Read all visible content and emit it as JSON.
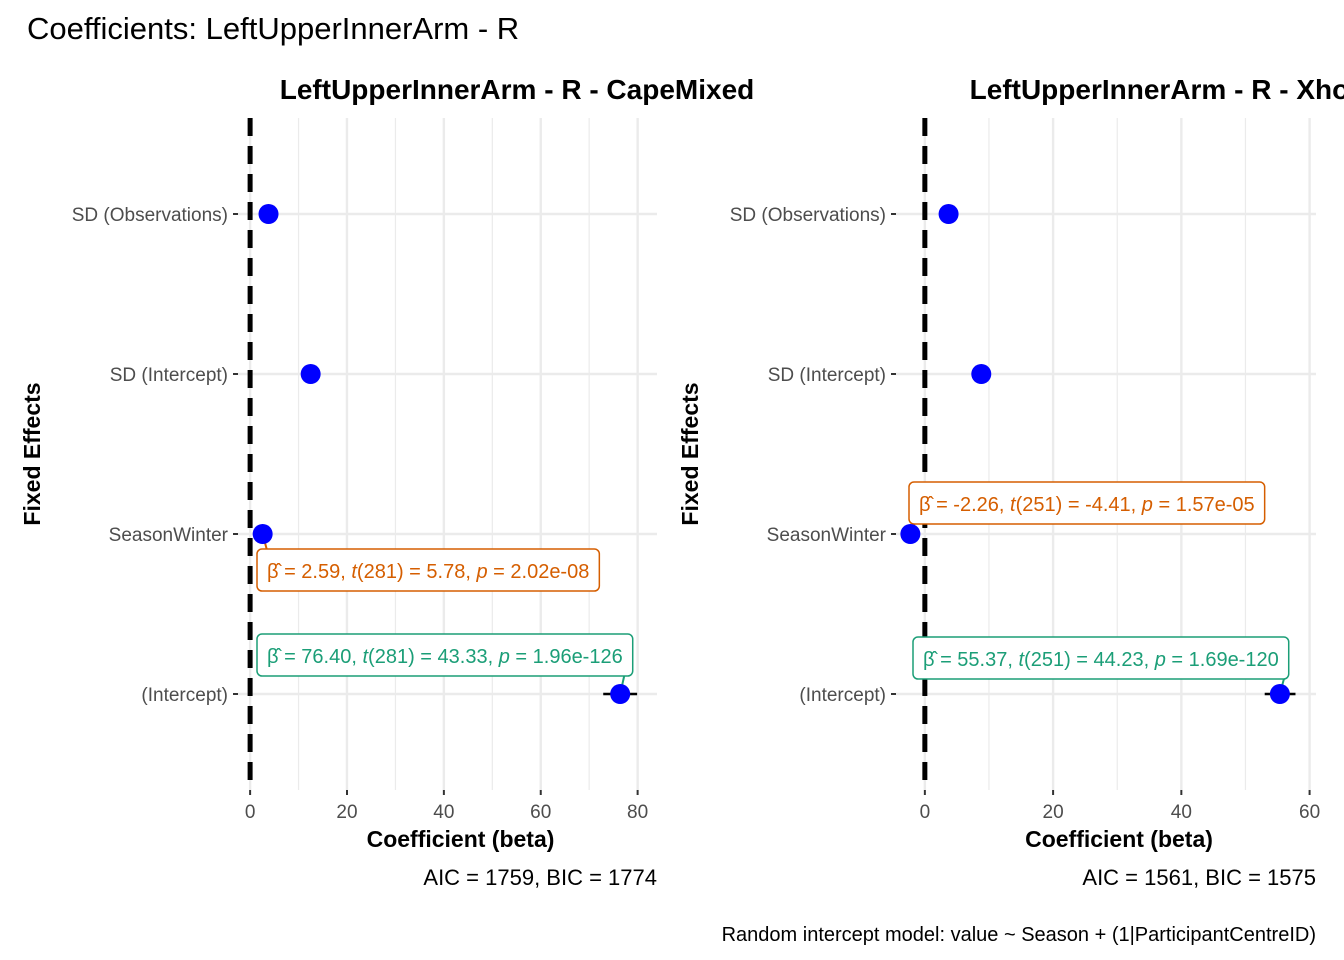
{
  "title": "Coefficients: LeftUpperInnerArm - R",
  "caption": "Random intercept model: value ~ Season + (1|ParticipantCentreID)",
  "colors": {
    "point": "#0000ff",
    "season_label": "#d55e00",
    "intercept_label": "#1b9e77",
    "grid": "#ebebeb",
    "zero_line": "#000000"
  },
  "chart_data": [
    {
      "type": "scatter",
      "title": "LeftUpperInnerArm - R - CapeMixed",
      "xlabel": "Coefficient (beta)",
      "ylabel": "Fixed Effects",
      "categories": [
        "SD (Observations)",
        "SD (Intercept)",
        "SeasonWinter",
        "(Intercept)"
      ],
      "values": [
        3.8,
        12.5,
        2.59,
        76.4
      ],
      "ci_low": [
        null,
        null,
        1.7,
        72.9
      ],
      "ci_high": [
        null,
        null,
        3.5,
        79.9
      ],
      "xlim": [
        -2.5,
        84
      ],
      "xticks": [
        0,
        20,
        40,
        60,
        80
      ],
      "reference_line": 0,
      "fit_stats": "AIC = 1759, BIC = 1774",
      "labels": {
        "season": {
          "beta": "2.59",
          "df": "281",
          "t": "5.78",
          "p": "2.02e-08"
        },
        "intercept": {
          "beta": "76.40",
          "df": "281",
          "t": "43.33",
          "p": "1.96e-126"
        }
      }
    },
    {
      "type": "scatter",
      "title": "LeftUpperInnerArm - R - Xhosa",
      "xlabel": "Coefficient (beta)",
      "ylabel": "Fixed Effects",
      "categories": [
        "SD (Observations)",
        "SD (Intercept)",
        "SeasonWinter",
        "(Intercept)"
      ],
      "values": [
        3.7,
        8.8,
        -2.26,
        55.37
      ],
      "ci_low": [
        null,
        null,
        -3.2,
        53.0
      ],
      "ci_high": [
        null,
        null,
        -1.3,
        57.8
      ],
      "xlim": [
        -4.5,
        61
      ],
      "xticks": [
        0,
        20,
        40,
        60
      ],
      "reference_line": 0,
      "fit_stats": "AIC = 1561, BIC = 1575",
      "labels": {
        "season": {
          "beta": "-2.26",
          "df": "251",
          "t": "-4.41",
          "p": "1.57e-05"
        },
        "intercept": {
          "beta": "55.37",
          "df": "251",
          "t": "44.23",
          "p": "1.69e-120"
        }
      }
    }
  ]
}
